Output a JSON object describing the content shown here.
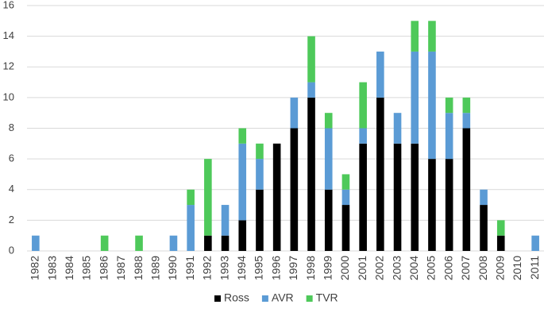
{
  "chart_data": {
    "type": "stacked-bar",
    "categories": [
      "1982",
      "1983",
      "1984",
      "1985",
      "1986",
      "1987",
      "1988",
      "1989",
      "1990",
      "1991",
      "1992",
      "1993",
      "1994",
      "1995",
      "1996",
      "1997",
      "1998",
      "1999",
      "2000",
      "2001",
      "2002",
      "2003",
      "2004",
      "2005",
      "2006",
      "2007",
      "2008",
      "2009",
      "2010",
      "2011"
    ],
    "series": [
      {
        "name": "Ross",
        "color": "#000000",
        "values": [
          0,
          0,
          0,
          0,
          0,
          0,
          0,
          0,
          0,
          0,
          1,
          1,
          2,
          4,
          7,
          8,
          10,
          4,
          3,
          7,
          10,
          7,
          7,
          6,
          6,
          8,
          3,
          1,
          0,
          0
        ]
      },
      {
        "name": "AVR",
        "color": "#5b9bd5",
        "values": [
          1,
          0,
          0,
          0,
          0,
          0,
          0,
          0,
          1,
          3,
          0,
          2,
          5,
          2,
          0,
          2,
          1,
          4,
          1,
          1,
          3,
          2,
          6,
          7,
          3,
          1,
          1,
          0,
          0,
          1
        ]
      },
      {
        "name": "TVR",
        "color": "#4ec95a",
        "values": [
          0,
          0,
          0,
          0,
          1,
          0,
          1,
          0,
          0,
          1,
          5,
          0,
          1,
          1,
          0,
          0,
          3,
          1,
          1,
          3,
          0,
          0,
          2,
          2,
          1,
          1,
          0,
          1,
          0,
          0
        ]
      }
    ],
    "ylim": [
      0,
      16
    ],
    "yticks": [
      0,
      2,
      4,
      6,
      8,
      10,
      12,
      14,
      16
    ],
    "grid": true,
    "legend": "bottom"
  }
}
